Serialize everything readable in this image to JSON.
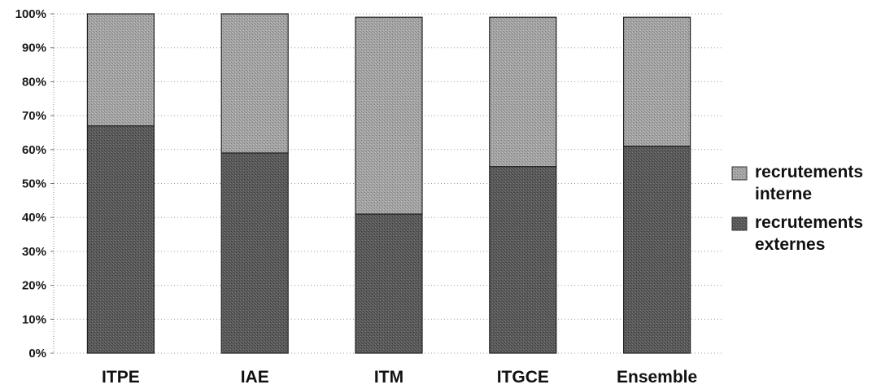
{
  "chart_data": {
    "type": "bar",
    "stacked": true,
    "categories": [
      "ITPE",
      "IAE",
      "ITM",
      "ITGCE",
      "Ensemble"
    ],
    "series": [
      {
        "name": "recrutements externes",
        "values": [
          67,
          59,
          41,
          55,
          61
        ],
        "color": "#5e5e5e"
      },
      {
        "name": "recrutements interne",
        "values": [
          33,
          41,
          58,
          44,
          38
        ],
        "color": "#9d9d9d"
      }
    ],
    "y_ticks": [
      "0%",
      "10%",
      "20%",
      "30%",
      "40%",
      "50%",
      "60%",
      "70%",
      "80%",
      "90%",
      "100%"
    ],
    "ylim": [
      0,
      100
    ],
    "grid": "dotted-horizontal",
    "legend_position": "right",
    "legend": [
      {
        "lines": [
          "recrutements",
          "interne"
        ],
        "color": "#9d9d9d"
      },
      {
        "lines": [
          "recrutements",
          "externes"
        ],
        "color": "#5e5e5e"
      }
    ]
  }
}
